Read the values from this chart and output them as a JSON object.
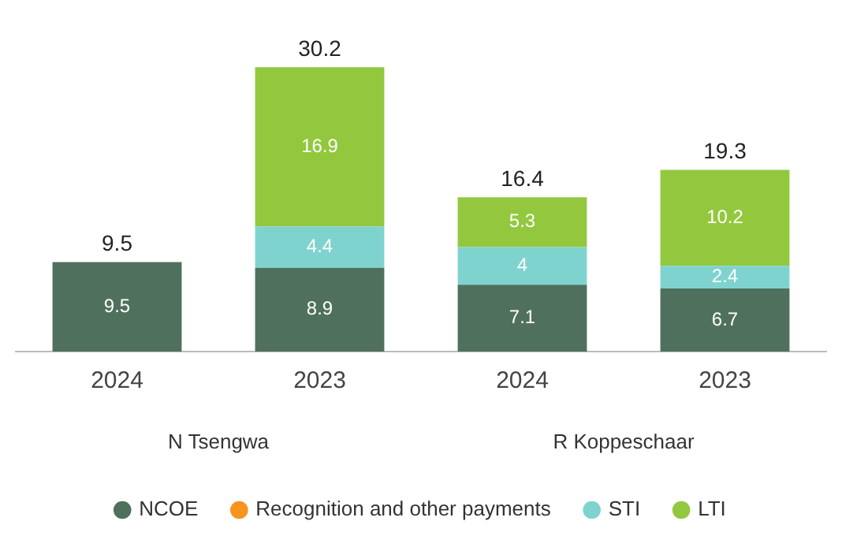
{
  "chart_data": {
    "type": "bar",
    "stacked": true,
    "categories": [
      "2024",
      "2023",
      "2024",
      "2023"
    ],
    "series": [
      {
        "name": "NCOE",
        "color": "#50705e",
        "values": [
          9.5,
          8.9,
          7.1,
          6.7
        ]
      },
      {
        "name": "Recognition and other payments",
        "color": "#f7941d",
        "values": [
          null,
          null,
          null,
          null
        ]
      },
      {
        "name": "STI",
        "color": "#7fd3cf",
        "values": [
          null,
          4.4,
          4,
          2.4
        ]
      },
      {
        "name": "LTI",
        "color": "#93c83e",
        "values": [
          null,
          16.9,
          5.3,
          10.2
        ]
      }
    ],
    "data_labels": true,
    "totals": [
      "9.5",
      "30.2",
      "16.4",
      "19.3"
    ],
    "annotations": [
      "N Tsengwa",
      "R Koppeschaar"
    ],
    "tick_labels": "x",
    "grid": false,
    "legend": "bottom",
    "marker": "circle"
  }
}
